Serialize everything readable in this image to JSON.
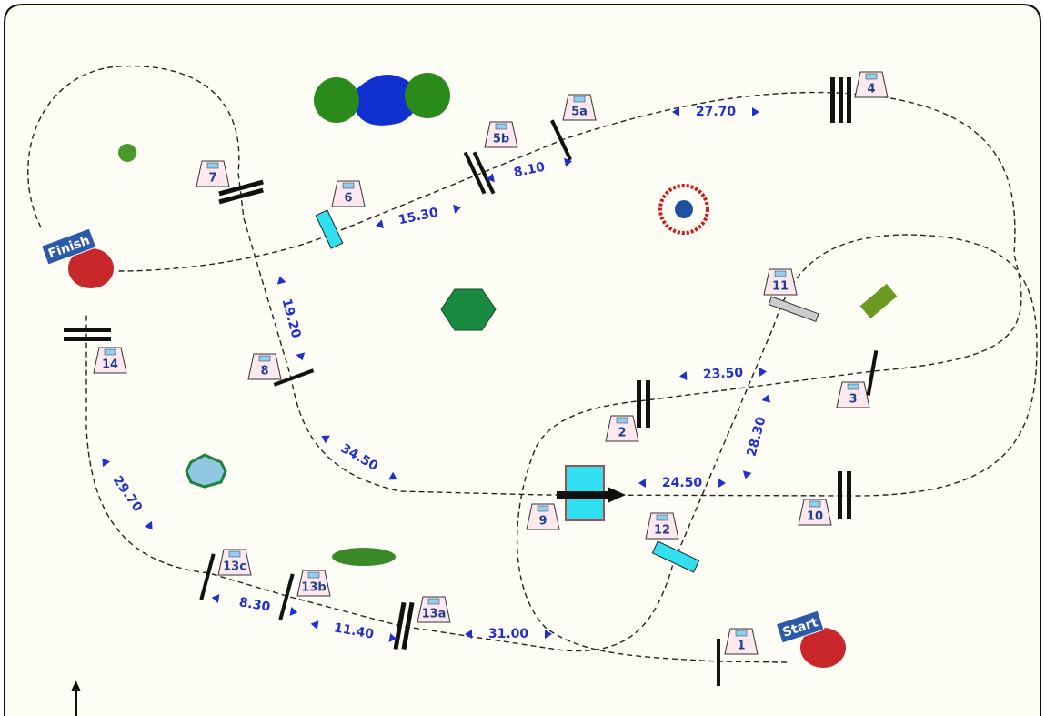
{
  "markers": {
    "start": "Start",
    "finish": "Finish"
  },
  "stations": [
    "1",
    "2",
    "3",
    "4",
    "5a",
    "5b",
    "6",
    "7",
    "8",
    "9",
    "10",
    "11",
    "12",
    "13a",
    "13b",
    "13c",
    "14"
  ],
  "distances": [
    "27.70",
    "8.10",
    "15.30",
    "19.20",
    "34.50",
    "23.50",
    "28.30",
    "24.50",
    "29.70",
    "8.30",
    "11.40",
    "31.00"
  ]
}
